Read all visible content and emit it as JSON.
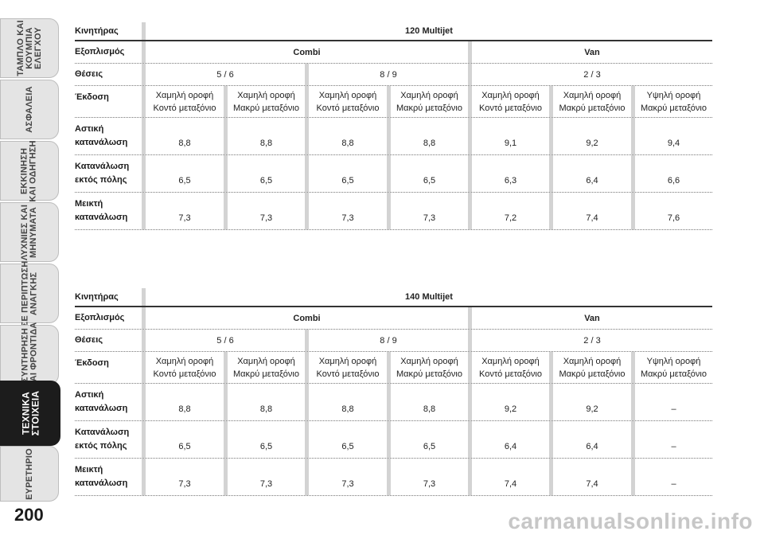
{
  "sidebar": {
    "tabs": [
      {
        "label": "ΤΑΜΠΛΟ ΚΑΙ\nΚΟΥΜΠΙΑ\nΕΛΕΓΧΟΥ",
        "active": false
      },
      {
        "label": "ΑΣΦΑΛΕΙΑ",
        "active": false
      },
      {
        "label": "ΕΚΚΙΝΗΣΗ\nΚΑΙ ΟΔΗΓΗΣΗ",
        "active": false
      },
      {
        "label": "ΛΥΧΝΙΕΣ ΚΑΙ\nΜΗΝΥΜΑΤΑ",
        "active": false
      },
      {
        "label": "ΣΕ ΠΕΡΙΠΤΩΣΗ\nΑΝΑΓΚΗΣ",
        "active": false
      },
      {
        "label": "ΣΥΝΤΗΡΗΣΗ\nΚΑΙ ΦΡΟΝΤΙΔΑ",
        "active": false
      },
      {
        "label": "ΤΕΧΝΙΚΑ\nΣΤΟΙΧΕΙΑ",
        "active": true
      },
      {
        "label": "ΕΥΡΕΤΗΡΙΟ",
        "active": false
      }
    ]
  },
  "page_number": "200",
  "labels": {
    "engine": "Κινητήρας",
    "equipment": "Εξοπλισμός",
    "seats": "Θέσεις",
    "version": "Έκδοση",
    "urban": "Αστική\nκατανάλωση",
    "extra_urban": "Κατανάλωση\nεκτός πόλης",
    "combined": "Μεικτή\nκατανάλωση"
  },
  "equipment": {
    "combi": "Combi",
    "van": "Van"
  },
  "seats": [
    "5 / 6",
    "8 / 9",
    "2 / 3"
  ],
  "versions": [
    "Χαμηλή οροφή\nΚοντό μεταξόνιο",
    "Χαμηλή οροφή\nΜακρύ μεταξόνιο",
    "Χαμηλή οροφή\nΚοντό μεταξόνιο",
    "Χαμηλή οροφή\nΜακρύ μεταξόνιο",
    "Χαμηλή οροφή\nΚοντό μεταξόνιο",
    "Χαμηλή οροφή\nΜακρύ μεταξόνιο",
    "Υψηλή οροφή\nΜακρύ μεταξόνιο"
  ],
  "tables": [
    {
      "engine": "120 Multijet",
      "urban": [
        "8,8",
        "8,8",
        "8,8",
        "8,8",
        "9,1",
        "9,2",
        "9,4"
      ],
      "extra_urban": [
        "6,5",
        "6,5",
        "6,5",
        "6,5",
        "6,3",
        "6,4",
        "6,6"
      ],
      "combined": [
        "7,3",
        "7,3",
        "7,3",
        "7,3",
        "7,2",
        "7,4",
        "7,6"
      ]
    },
    {
      "engine": "140 Multijet",
      "urban": [
        "8,8",
        "8,8",
        "8,8",
        "8,8",
        "9,2",
        "9,2",
        "–"
      ],
      "extra_urban": [
        "6,5",
        "6,5",
        "6,5",
        "6,5",
        "6,4",
        "6,4",
        "–"
      ],
      "combined": [
        "7,3",
        "7,3",
        "7,3",
        "7,3",
        "7,4",
        "7,4",
        "–"
      ]
    }
  ],
  "watermark": "carmanualsonline.info"
}
